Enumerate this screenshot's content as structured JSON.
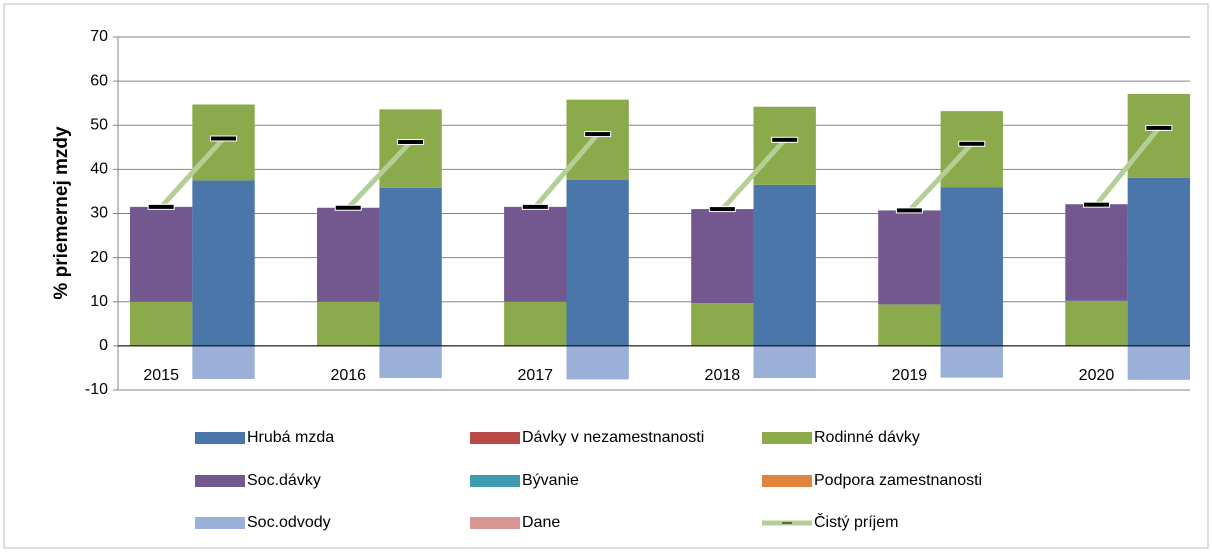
{
  "chart_data": {
    "type": "bar",
    "stacked": true,
    "y_label": "% priemernej mzdy",
    "categories": [
      "2015",
      null,
      null,
      "2016",
      null,
      null,
      "2017",
      null,
      null,
      "2018",
      null,
      null,
      "2019",
      null,
      null,
      "2020",
      null
    ],
    "ylim": [
      -10,
      70
    ],
    "yticks": [
      -10,
      0,
      10,
      20,
      30,
      40,
      50,
      60,
      70
    ],
    "grid": true,
    "series": [
      {
        "name": "Hrubá mzda",
        "color": "#4a76aa",
        "values": [
          0,
          37.5,
          null,
          0,
          35.8,
          null,
          0,
          37.6,
          null,
          0,
          36.5,
          null,
          0,
          35.9,
          null,
          0,
          38.1
        ]
      },
      {
        "name": "Dávky v nezamestnanosti",
        "color": "#b94a48",
        "values": [
          0,
          0,
          null,
          0,
          0,
          null,
          0,
          0,
          null,
          0,
          0,
          null,
          0,
          0,
          null,
          0,
          0
        ]
      },
      {
        "name": "Rodinné dávky",
        "color": "#8aaa4c",
        "values": [
          10,
          17.2,
          null,
          10,
          17.8,
          null,
          10,
          18.2,
          null,
          9.7,
          17.7,
          null,
          9.4,
          17.3,
          null,
          10.2,
          19
        ]
      },
      {
        "name": "Soc.dávky",
        "color": "#73578f",
        "values": [
          21.5,
          0,
          null,
          21.3,
          0,
          null,
          21.5,
          0,
          null,
          21.3,
          0,
          null,
          21.3,
          0,
          null,
          21.9,
          0
        ]
      },
      {
        "name": "Bývanie",
        "color": "#3f9bb0",
        "values": [
          0,
          0,
          null,
          0,
          0,
          null,
          0,
          0,
          null,
          0,
          0,
          null,
          0,
          0,
          null,
          0,
          0
        ]
      },
      {
        "name": "Podpora zamestnanosti",
        "color": "#e0853b",
        "values": [
          0,
          0,
          null,
          0,
          0,
          null,
          0,
          0,
          null,
          0,
          0,
          null,
          0,
          0,
          null,
          0,
          0
        ]
      },
      {
        "name": "Soc.odvody",
        "color": "#9bb0d8",
        "values": [
          0,
          -7.5,
          null,
          0,
          -7.3,
          null,
          0,
          -7.6,
          null,
          0,
          -7.3,
          null,
          0,
          -7.2,
          null,
          0,
          -7.7
        ]
      },
      {
        "name": "Dane",
        "color": "#d99694",
        "values": [
          0,
          0,
          null,
          0,
          0,
          null,
          0,
          0,
          null,
          0,
          0,
          null,
          0,
          0,
          null,
          0,
          0
        ]
      },
      {
        "name": "Čistý príjem",
        "color": "#b3cf95",
        "type": "line",
        "values": [
          31.5,
          47,
          null,
          31.3,
          46.2,
          null,
          31.5,
          48,
          null,
          31,
          46.7,
          null,
          30.7,
          45.8,
          null,
          32,
          49.4
        ]
      }
    ]
  }
}
